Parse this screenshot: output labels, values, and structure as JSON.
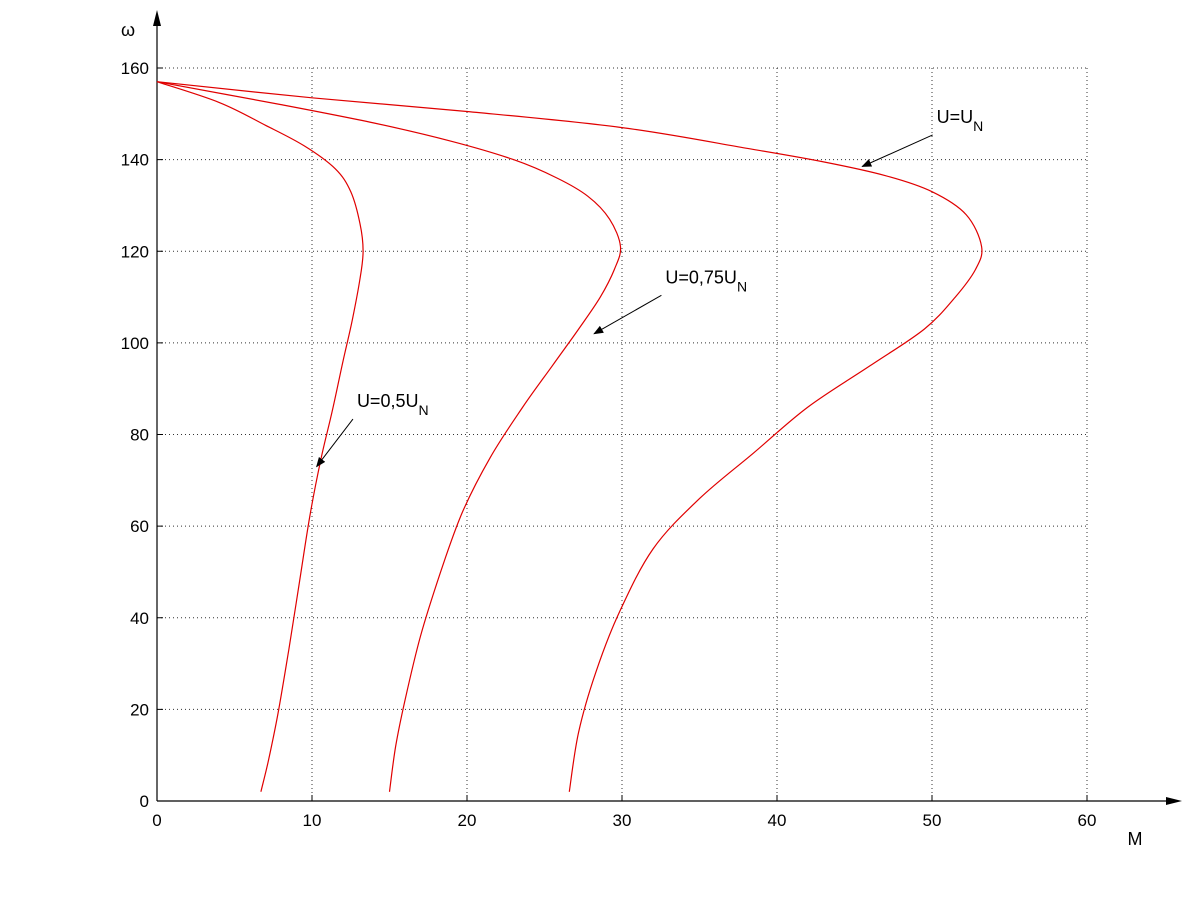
{
  "chart_data": {
    "type": "line",
    "title": "",
    "xlabel": "M",
    "ylabel": "ω",
    "xlim": [
      0,
      60
    ],
    "ylim": [
      0,
      160
    ],
    "xticks": [
      0,
      10,
      20,
      30,
      40,
      50,
      60
    ],
    "yticks": [
      0,
      20,
      40,
      60,
      80,
      100,
      120,
      140,
      160
    ],
    "grid": true,
    "line_color": "#e00000",
    "series": [
      {
        "annotation": "U=0,5U_N",
        "points": [
          [
            0,
            157
          ],
          [
            4,
            152.5
          ],
          [
            7,
            147.5
          ],
          [
            9.5,
            143
          ],
          [
            11.5,
            138
          ],
          [
            12.5,
            133
          ],
          [
            13.1,
            126
          ],
          [
            13.3,
            120
          ],
          [
            13.1,
            114
          ],
          [
            12.6,
            105
          ],
          [
            12.0,
            96
          ],
          [
            11.3,
            85
          ],
          [
            10.6,
            75
          ],
          [
            9.9,
            63
          ],
          [
            9.2,
            48
          ],
          [
            8.5,
            33
          ],
          [
            7.8,
            19
          ],
          [
            7.2,
            9
          ],
          [
            6.7,
            2
          ]
        ]
      },
      {
        "annotation": "U=0,75U_N",
        "points": [
          [
            0,
            157
          ],
          [
            8,
            152
          ],
          [
            14,
            148
          ],
          [
            19,
            144
          ],
          [
            23,
            140
          ],
          [
            25.8,
            136
          ],
          [
            27.8,
            132
          ],
          [
            29.2,
            127
          ],
          [
            29.9,
            121
          ],
          [
            29.5,
            116
          ],
          [
            28.6,
            110
          ],
          [
            27.2,
            103
          ],
          [
            25.5,
            95
          ],
          [
            23.6,
            86
          ],
          [
            21.5,
            75
          ],
          [
            19.7,
            63
          ],
          [
            18.3,
            50
          ],
          [
            17,
            36
          ],
          [
            16,
            22
          ],
          [
            15.4,
            12
          ],
          [
            15,
            2
          ]
        ]
      },
      {
        "annotation": "U=U_N",
        "points": [
          [
            0,
            157
          ],
          [
            10,
            153.5
          ],
          [
            20,
            150.5
          ],
          [
            30,
            147
          ],
          [
            38,
            142.5
          ],
          [
            43,
            139.5
          ],
          [
            47,
            136.5
          ],
          [
            50,
            133
          ],
          [
            52.2,
            128
          ],
          [
            53.2,
            121
          ],
          [
            52.8,
            116
          ],
          [
            51.5,
            110
          ],
          [
            49.5,
            103
          ],
          [
            46,
            95
          ],
          [
            42,
            86
          ],
          [
            38.5,
            76
          ],
          [
            35,
            66
          ],
          [
            32,
            55
          ],
          [
            29.8,
            41
          ],
          [
            28.3,
            28
          ],
          [
            27.2,
            15
          ],
          [
            26.6,
            2
          ]
        ]
      }
    ],
    "annotations": [
      {
        "main": "U=0,5U",
        "sub": "N",
        "text_at": [
          12.9,
          86
        ],
        "arrow_to": [
          10.3,
          73
        ]
      },
      {
        "main": "U=0,75U",
        "sub": "N",
        "text_at": [
          32.8,
          113
        ],
        "arrow_to": [
          28.2,
          102
        ]
      },
      {
        "main": "U=U",
        "sub": "N",
        "text_at": [
          50.3,
          148
        ],
        "arrow_to": [
          45.5,
          138.5
        ]
      }
    ]
  }
}
